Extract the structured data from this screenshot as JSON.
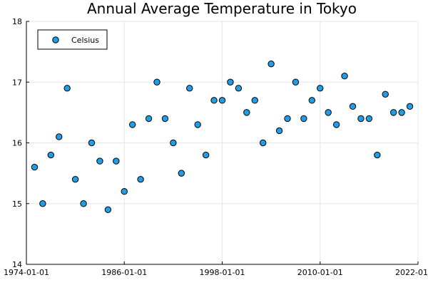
{
  "chart_data": {
    "type": "scatter",
    "title": "Annual Average Temperature in Tokyo",
    "xlabel": "",
    "ylabel": "",
    "grid": true,
    "legend_position": "top-left",
    "x_range": [
      "1974-01-01",
      "2022-01-01"
    ],
    "ylim": [
      14,
      18
    ],
    "x_ticks": [
      "1974-01-01",
      "1986-01-01",
      "1998-01-01",
      "2010-01-01",
      "2022-01-01"
    ],
    "y_ticks": [
      14,
      15,
      16,
      17,
      18
    ],
    "series": [
      {
        "name": "Celsius",
        "color": "#1f9ee6",
        "x": [
          1975,
          1976,
          1977,
          1978,
          1979,
          1980,
          1981,
          1982,
          1983,
          1984,
          1985,
          1986,
          1987,
          1988,
          1989,
          1990,
          1991,
          1992,
          1993,
          1994,
          1995,
          1996,
          1997,
          1998,
          1999,
          2000,
          2001,
          2002,
          2003,
          2004,
          2005,
          2006,
          2007,
          2008,
          2009,
          2010,
          2011,
          2012,
          2013,
          2014,
          2015,
          2016,
          2017,
          2018,
          2019,
          2020,
          2021
        ],
        "y": [
          15.6,
          15.0,
          15.8,
          16.1,
          16.9,
          15.4,
          15.0,
          16.0,
          15.7,
          14.9,
          15.7,
          15.2,
          16.3,
          15.4,
          16.4,
          17.0,
          16.4,
          16.0,
          15.5,
          16.9,
          16.3,
          15.8,
          16.7,
          16.7,
          17.0,
          16.9,
          16.5,
          16.7,
          16.0,
          17.3,
          16.2,
          16.4,
          17.0,
          16.4,
          16.7,
          16.9,
          16.5,
          16.3,
          17.1,
          16.6,
          16.4,
          16.4,
          15.8,
          16.8,
          16.5,
          16.5,
          16.6
        ]
      }
    ]
  }
}
